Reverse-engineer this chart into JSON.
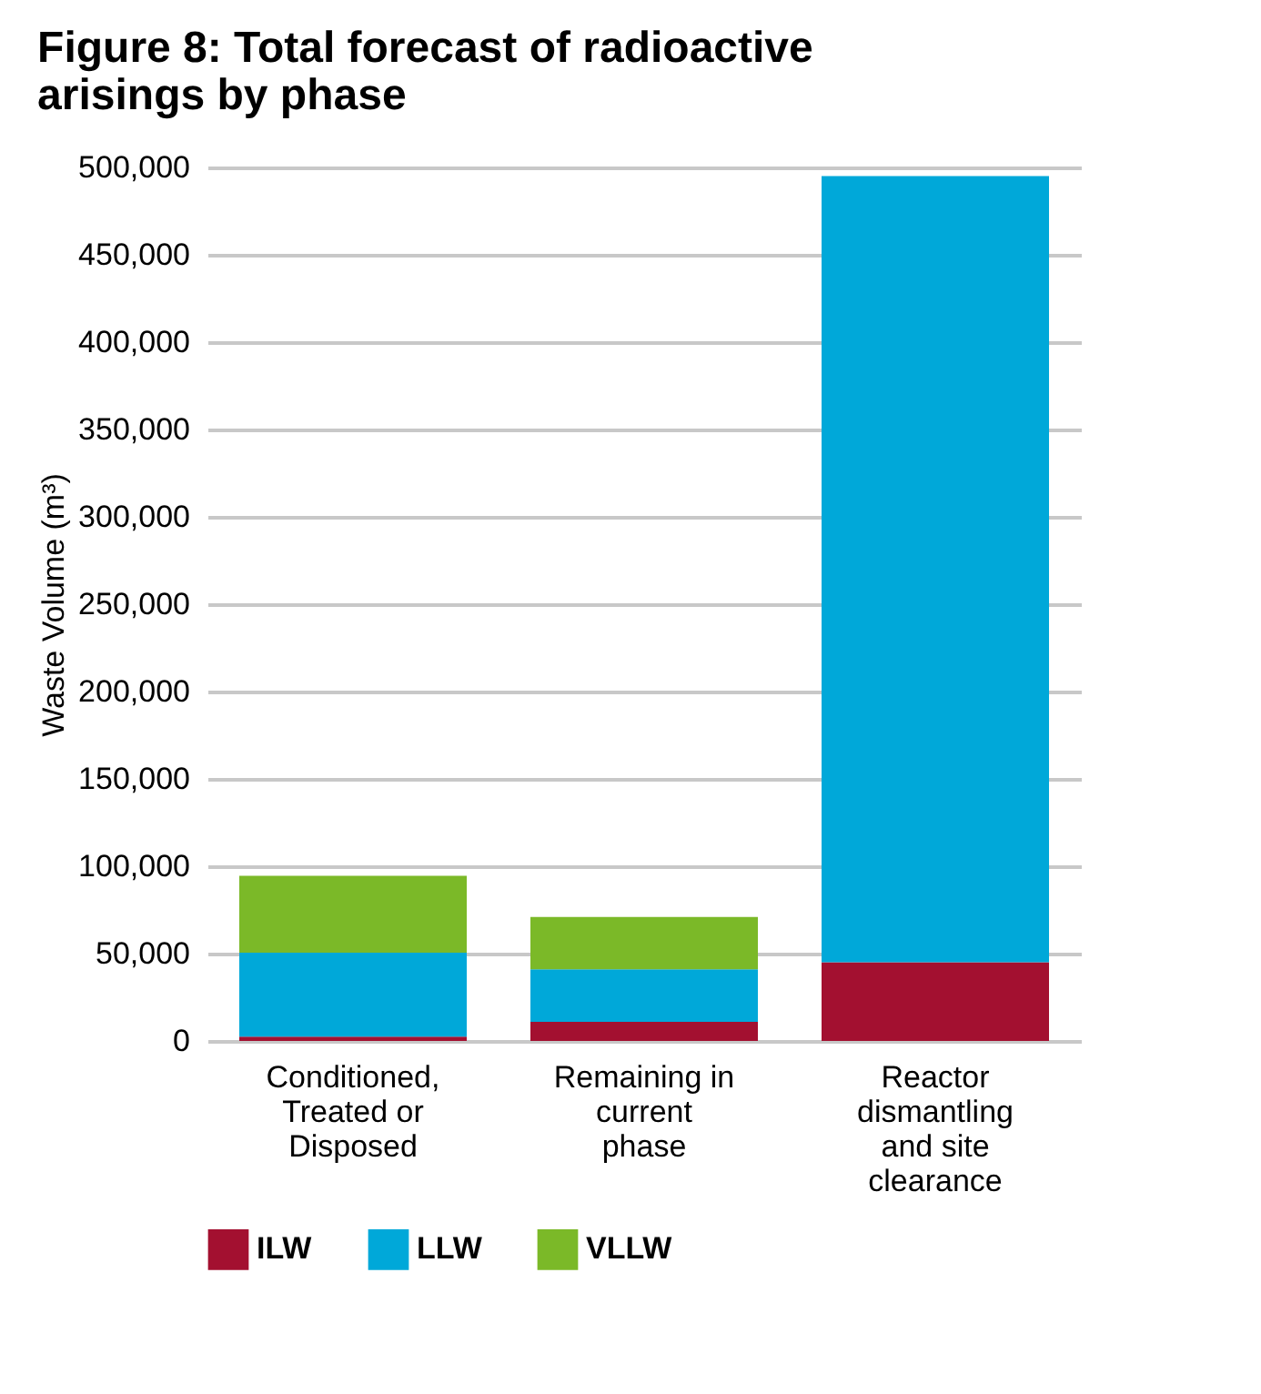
{
  "chart_data": {
    "type": "bar",
    "title": "Figure 8: Total forecast of radioactive arisings by phase",
    "ylabel": "Waste Volume (m³)",
    "categories": [
      "Conditioned, Treated or Disposed",
      "Remaining in current phase",
      "Reactor dismantling and site clearance"
    ],
    "series": [
      {
        "name": "ILW",
        "color": "#a31030",
        "values": [
          2500,
          11000,
          45000
        ]
      },
      {
        "name": "LLW",
        "color": "#00a8d9",
        "values": [
          48000,
          30000,
          450000
        ]
      },
      {
        "name": "VLLW",
        "color": "#7bb928",
        "values": [
          44000,
          30000,
          0
        ]
      }
    ],
    "stacked": true,
    "ylim": [
      0,
      500000
    ],
    "yticks": [
      0,
      {
        "value": 50000,
        "label": "50,000"
      },
      {
        "value": 100000,
        "label": "100,000"
      },
      {
        "value": 150000,
        "label": "150,000"
      },
      {
        "value": 200000,
        "label": "200,000"
      },
      {
        "value": 250000,
        "label": "250,000"
      },
      {
        "value": 300000,
        "label": "300,000"
      },
      {
        "value": 350000,
        "label": "350,000"
      },
      {
        "value": 400000,
        "label": "400,000"
      },
      {
        "value": 450000,
        "label": "450,000"
      },
      {
        "value": 500000,
        "label": "500,000"
      }
    ],
    "grid": "y",
    "legend": "bottom left"
  }
}
